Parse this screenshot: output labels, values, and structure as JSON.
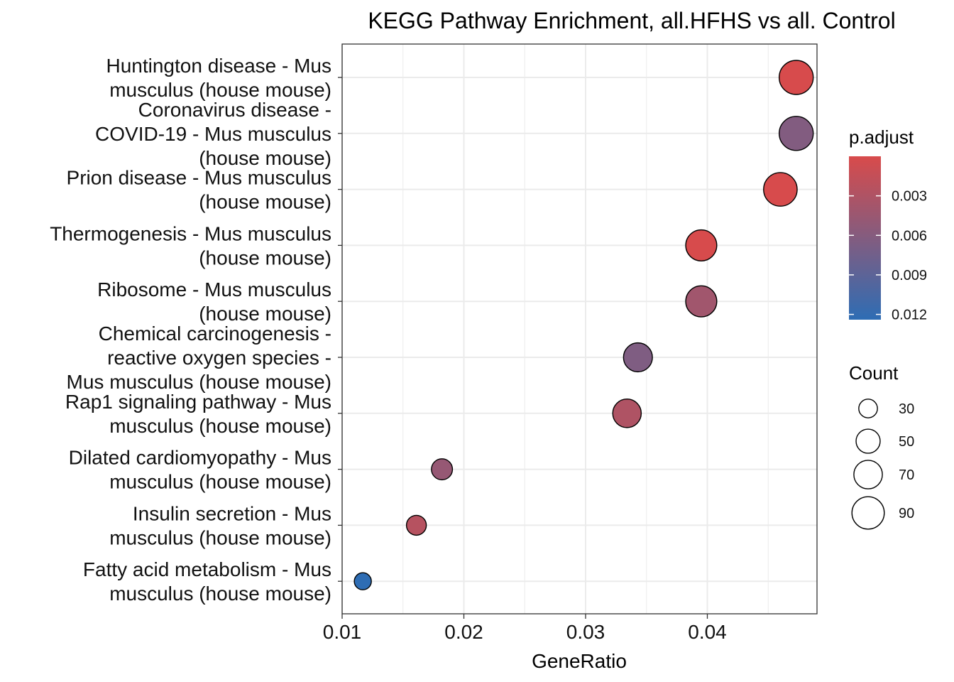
{
  "chart_data": {
    "type": "scatter",
    "title": "KEGG Pathway Enrichment, all.HFHS vs all. Control",
    "xlabel": "GeneRatio",
    "ylabel": "",
    "xlim": [
      0.01,
      0.049
    ],
    "xticks": [
      0.01,
      0.02,
      0.03,
      0.04
    ],
    "xtick_labels": [
      "0.01",
      "0.02",
      "0.03",
      "0.04"
    ],
    "grid": true,
    "categories": [
      [
        "Huntington disease - Mus",
        "musculus (house mouse)"
      ],
      [
        "Coronavirus disease -",
        "COVID-19 - Mus musculus",
        "(house mouse)"
      ],
      [
        "Prion disease - Mus musculus",
        "(house mouse)"
      ],
      [
        "Thermogenesis - Mus musculus",
        "(house mouse)"
      ],
      [
        "Ribosome - Mus musculus",
        "(house mouse)"
      ],
      [
        "Chemical carcinogenesis -",
        "reactive oxygen species -",
        "Mus musculus (house mouse)"
      ],
      [
        "Rap1 signaling pathway - Mus",
        "musculus (house mouse)"
      ],
      [
        "Dilated cardiomyopathy - Mus",
        "musculus (house mouse)"
      ],
      [
        "Insulin secretion - Mus",
        "musculus (house mouse)"
      ],
      [
        "Fatty acid metabolism - Mus",
        "musculus (house mouse)"
      ]
    ],
    "gene_ratio": [
      0.0473,
      0.0473,
      0.046,
      0.0395,
      0.0395,
      0.0343,
      0.0334,
      0.0182,
      0.0161,
      0.0117
    ],
    "count": [
      100,
      100,
      97,
      83,
      83,
      72,
      70,
      38,
      34,
      25
    ],
    "p_adjust": [
      0.0001,
      0.0063,
      0.0001,
      0.0001,
      0.004,
      0.0065,
      0.003,
      0.0048,
      0.0025,
      0.0124
    ],
    "legend_color": {
      "title": "p.adjust",
      "ticks": [
        0.003,
        0.006,
        0.009,
        0.012
      ],
      "tick_labels": [
        "0.003",
        "0.006",
        "0.009",
        "0.012"
      ],
      "low_color": "#D84B4B",
      "high_color": "#2E6DB4"
    },
    "legend_size": {
      "title": "Count",
      "values": [
        30,
        50,
        70,
        90
      ],
      "labels": [
        "30",
        "50",
        "70",
        "90"
      ]
    },
    "legend_placement": "right"
  }
}
